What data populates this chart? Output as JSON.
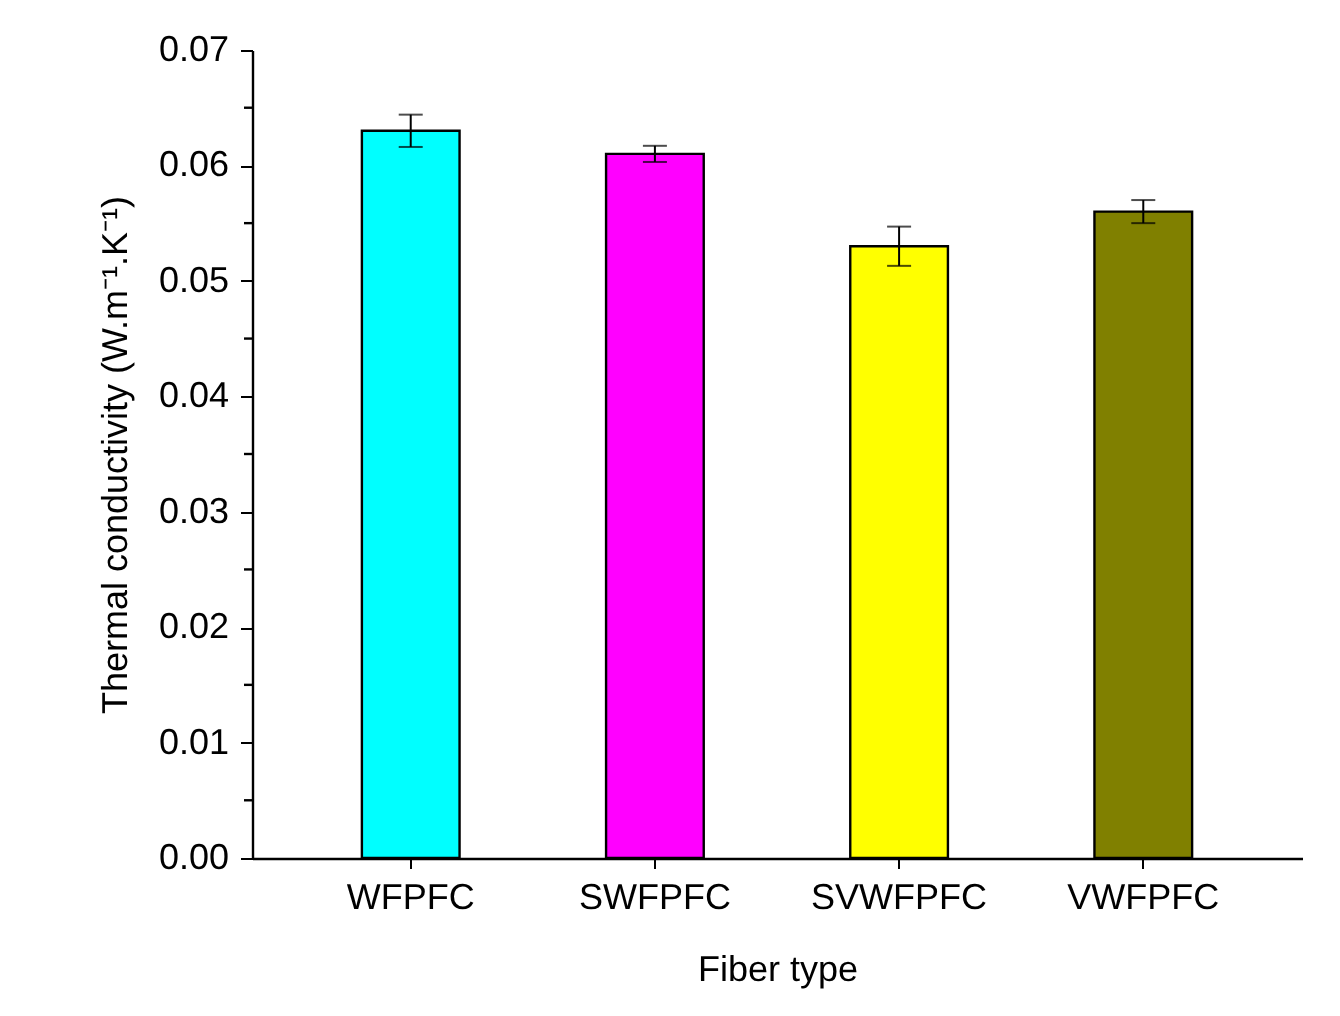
{
  "chart_data": {
    "type": "bar",
    "xlabel": "Fiber type",
    "ylabel": "Thermal conductivity (W.m⁻¹.K⁻¹)",
    "categories": [
      "WFPFC",
      "SWFPFC",
      "SVWFPFC",
      "VWFPFC"
    ],
    "values": [
      0.063,
      0.061,
      0.053,
      0.056
    ],
    "errors": [
      0.0014,
      0.0007,
      0.0017,
      0.001
    ],
    "colors": [
      "#00ffff",
      "#ff00ff",
      "#ffff00",
      "#808000"
    ],
    "ylim": [
      0,
      0.07
    ],
    "yticks": [
      {
        "value": 0,
        "label": "0.00"
      },
      {
        "value": 0.005,
        "label": null
      },
      {
        "value": 0.01,
        "label": "0.01"
      },
      {
        "value": 0.015,
        "label": null
      },
      {
        "value": 0.02,
        "label": "0.02"
      },
      {
        "value": 0.025,
        "label": null
      },
      {
        "value": 0.03,
        "label": "0.03"
      },
      {
        "value": 0.035,
        "label": null
      },
      {
        "value": 0.04,
        "label": "0.04"
      },
      {
        "value": 0.045,
        "label": null
      },
      {
        "value": 0.05,
        "label": "0.05"
      },
      {
        "value": 0.055,
        "label": null
      },
      {
        "value": 0.06,
        "label": "0.06"
      },
      {
        "value": 0.065,
        "label": null
      },
      {
        "value": 0.07,
        "label": "0.07"
      }
    ],
    "grid": false,
    "legend": false
  }
}
